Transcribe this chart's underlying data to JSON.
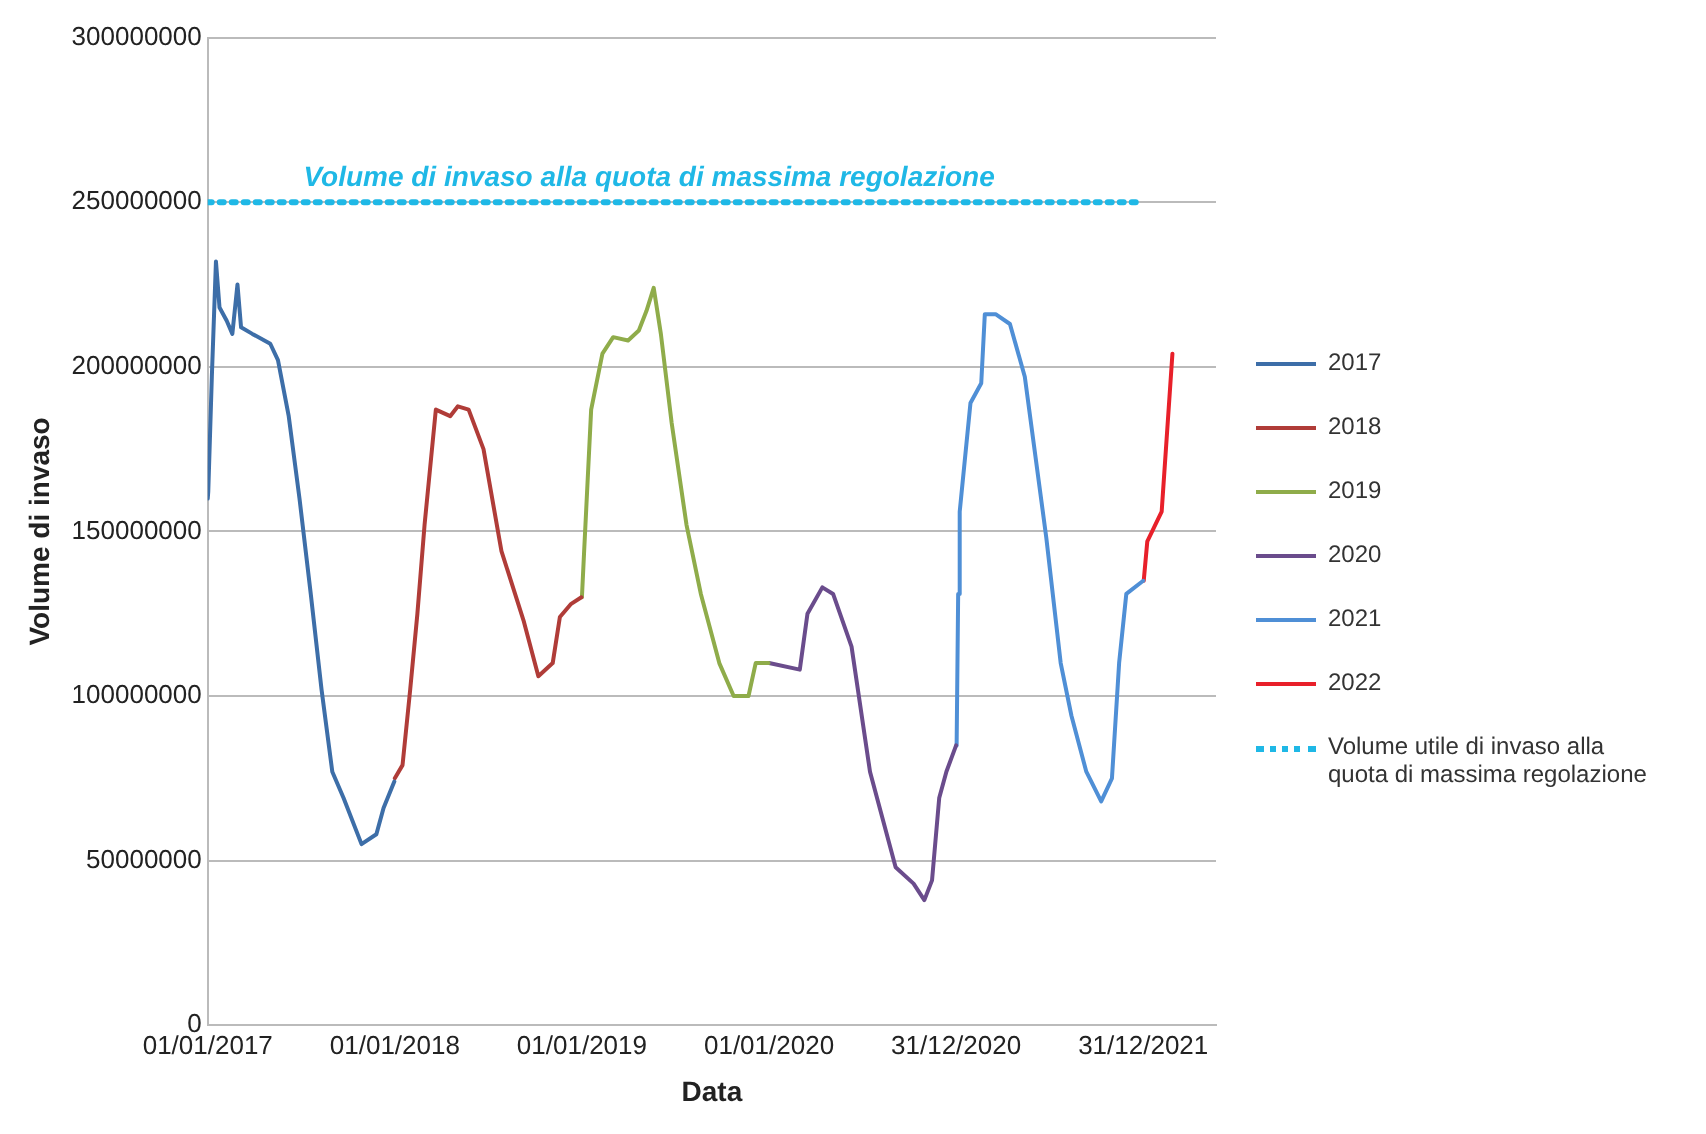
{
  "chart_data": {
    "type": "line",
    "xlabel": "Data",
    "ylabel": "Volume di invaso",
    "xlim": [
      "2017-01-01",
      "2022-05-22"
    ],
    "xticks": [
      {
        "value": "2017-01-01",
        "label": "01/01/2017"
      },
      {
        "value": "2018-01-01",
        "label": "01/01/2018"
      },
      {
        "value": "2019-01-01",
        "label": "01/01/2019"
      },
      {
        "value": "2020-01-01",
        "label": "01/01/2020"
      },
      {
        "value": "2020-12-31",
        "label": "31/12/2020"
      },
      {
        "value": "2021-12-31",
        "label": "31/12/2021"
      }
    ],
    "ylim": [
      0,
      300000000
    ],
    "yticks": [
      0,
      50000000,
      100000000,
      150000000,
      200000000,
      250000000,
      300000000
    ],
    "grid": "y",
    "legend": "right",
    "marker": "none",
    "series": [
      {
        "name": "2017",
        "color": "#3d6ea8",
        "x": [
          "2017-01-01",
          "2017-01-02",
          "2017-01-09",
          "2017-01-17",
          "2017-01-24",
          "2017-02-07",
          "2017-02-18",
          "2017-02-28",
          "2017-03-07",
          "2017-03-29",
          "2017-05-03",
          "2017-05-18",
          "2017-06-08",
          "2017-06-29",
          "2017-07-21",
          "2017-08-11",
          "2017-09-01",
          "2017-09-23",
          "2017-10-28",
          "2017-11-26",
          "2017-12-10",
          "2017-12-31"
        ],
        "values": [
          160000000,
          162000000,
          197000000,
          232000000,
          218000000,
          214000000,
          210000000,
          225000000,
          212000000,
          210000000,
          207000000,
          202000000,
          185000000,
          160000000,
          131000000,
          102000000,
          77000000,
          69000000,
          55000000,
          58000000,
          66000000,
          74000000
        ]
      },
      {
        "name": "2018",
        "color": "#b03c38",
        "x": [
          "2018-01-01",
          "2018-01-16",
          "2018-01-31",
          "2018-02-14",
          "2018-02-28",
          "2018-03-22",
          "2018-04-19",
          "2018-05-04",
          "2018-05-25",
          "2018-06-23",
          "2018-07-28",
          "2018-09-09",
          "2018-10-08",
          "2018-11-05",
          "2018-11-19",
          "2018-12-11",
          "2018-12-31"
        ],
        "values": [
          75000000,
          79000000,
          102000000,
          125000000,
          152000000,
          187000000,
          185000000,
          188000000,
          187000000,
          175000000,
          144000000,
          123000000,
          106000000,
          110000000,
          124000000,
          128000000,
          130000000
        ]
      },
      {
        "name": "2019",
        "color": "#8fac4a",
        "x": [
          "2019-01-01",
          "2019-01-05",
          "2019-01-19",
          "2019-02-10",
          "2019-03-03",
          "2019-04-01",
          "2019-04-22",
          "2019-05-07",
          "2019-05-21",
          "2019-06-04",
          "2019-06-25",
          "2019-07-24",
          "2019-08-21",
          "2019-09-26",
          "2019-10-24",
          "2019-11-22",
          "2019-12-06",
          "2019-12-31"
        ],
        "values": [
          130000000,
          143000000,
          187000000,
          204000000,
          209000000,
          208000000,
          211000000,
          217000000,
          224000000,
          210000000,
          183000000,
          152000000,
          131000000,
          110000000,
          100000000,
          100000000,
          110000000,
          110000000
        ]
      },
      {
        "name": "2020",
        "color": "#6a4c8c",
        "x": [
          "2020-01-01",
          "2020-03-01",
          "2020-03-16",
          "2020-04-14",
          "2020-05-05",
          "2020-06-10",
          "2020-07-16",
          "2020-09-04",
          "2020-10-09",
          "2020-10-30",
          "2020-11-14",
          "2020-11-28",
          "2020-12-12",
          "2020-12-31"
        ],
        "values": [
          110000000,
          108000000,
          125000000,
          133000000,
          131000000,
          115000000,
          77000000,
          48000000,
          43000000,
          38000000,
          44000000,
          69000000,
          77000000,
          85000000
        ]
      },
      {
        "name": "2021",
        "color": "#4f8fd6",
        "x": [
          "2021-01-01",
          "2021-01-04",
          "2021-01-07",
          "2021-01-28",
          "2021-02-18",
          "2021-02-25",
          "2021-03-18",
          "2021-04-15",
          "2021-05-14",
          "2021-06-25",
          "2021-07-23",
          "2021-08-13",
          "2021-09-11",
          "2021-10-10",
          "2021-10-31",
          "2021-11-14",
          "2021-11-28",
          "2021-12-31"
        ],
        "values": [
          85000000,
          131000000,
          156000000,
          189000000,
          195000000,
          216000000,
          216000000,
          213000000,
          197000000,
          148000000,
          110000000,
          94000000,
          77000000,
          68000000,
          75000000,
          110000000,
          131000000,
          135000000
        ]
      },
      {
        "name": "2022",
        "color": "#e8202a",
        "x": [
          "2022-01-01",
          "2022-01-08",
          "2022-02-05",
          "2022-02-26"
        ],
        "values": [
          135000000,
          147000000,
          156000000,
          204000000
        ]
      },
      {
        "name": "Volume utile di invaso alla quota di massima regolazione",
        "color": "#1fb8e6",
        "line_style": "dotted",
        "x": [
          "2017-01-01",
          "2021-12-20"
        ],
        "values": [
          250000000,
          250000000
        ]
      }
    ],
    "annotations": [
      {
        "text": "Volume di invaso alla quota di massima regolazione",
        "x": "2019-05-12",
        "y": 250000000
      }
    ]
  }
}
